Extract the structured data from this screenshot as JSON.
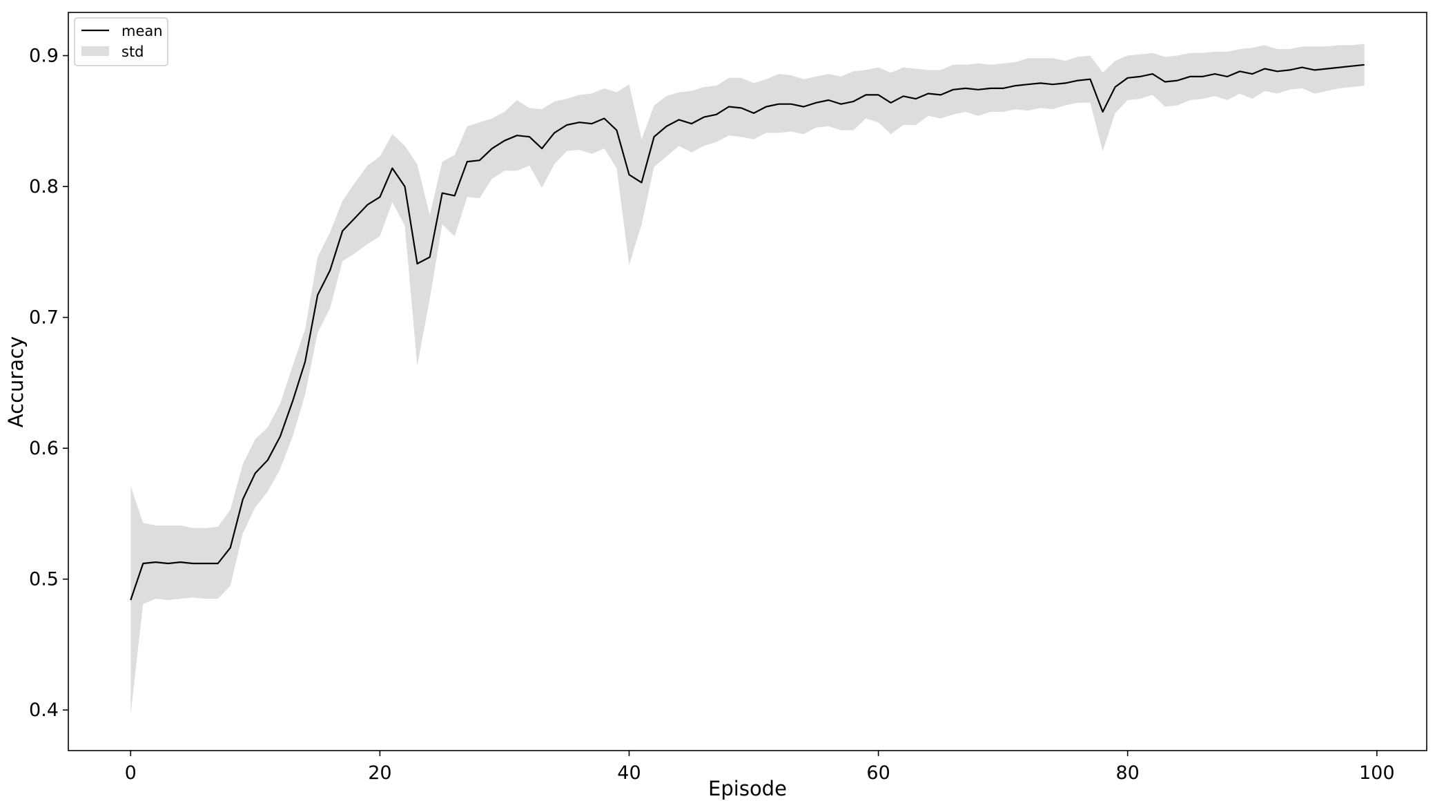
{
  "chart_data": {
    "type": "line",
    "xlabel": "Episode",
    "ylabel": "Accuracy",
    "xlim": [
      -5,
      104
    ],
    "ylim": [
      0.369,
      0.933
    ],
    "xticks": [
      0,
      20,
      40,
      60,
      80,
      100
    ],
    "yticks": [
      0.4,
      0.5,
      0.6,
      0.7,
      0.8,
      0.9
    ],
    "grid": false,
    "legend": {
      "position": "top-left",
      "entries": [
        {
          "label": "mean",
          "kind": "line",
          "color": "#000000"
        },
        {
          "label": "std",
          "kind": "patch",
          "color": "#dddddd"
        }
      ]
    },
    "series": [
      {
        "name": "mean",
        "color": "#000000",
        "x": [
          0,
          1,
          2,
          3,
          4,
          5,
          6,
          7,
          8,
          9,
          10,
          11,
          12,
          13,
          14,
          15,
          16,
          17,
          18,
          19,
          20,
          21,
          22,
          23,
          24,
          25,
          26,
          27,
          28,
          29,
          30,
          31,
          32,
          33,
          34,
          35,
          36,
          37,
          38,
          39,
          40,
          41,
          42,
          43,
          44,
          45,
          46,
          47,
          48,
          49,
          50,
          51,
          52,
          53,
          54,
          55,
          56,
          57,
          58,
          59,
          60,
          61,
          62,
          63,
          64,
          65,
          66,
          67,
          68,
          69,
          70,
          71,
          72,
          73,
          74,
          75,
          76,
          77,
          78,
          79,
          80,
          81,
          82,
          83,
          84,
          85,
          86,
          87,
          88,
          89,
          90,
          91,
          92,
          93,
          94,
          95,
          96,
          97,
          98,
          99
        ],
        "y": [
          0.484,
          0.512,
          0.513,
          0.512,
          0.513,
          0.512,
          0.512,
          0.512,
          0.524,
          0.561,
          0.581,
          0.591,
          0.609,
          0.636,
          0.666,
          0.717,
          0.736,
          0.766,
          0.776,
          0.786,
          0.792,
          0.814,
          0.8,
          0.741,
          0.746,
          0.795,
          0.793,
          0.819,
          0.82,
          0.829,
          0.835,
          0.839,
          0.838,
          0.829,
          0.841,
          0.847,
          0.849,
          0.848,
          0.852,
          0.843,
          0.809,
          0.803,
          0.838,
          0.846,
          0.851,
          0.848,
          0.853,
          0.855,
          0.861,
          0.86,
          0.856,
          0.861,
          0.863,
          0.863,
          0.861,
          0.864,
          0.866,
          0.863,
          0.865,
          0.87,
          0.87,
          0.864,
          0.869,
          0.867,
          0.871,
          0.87,
          0.874,
          0.875,
          0.874,
          0.875,
          0.875,
          0.877,
          0.878,
          0.879,
          0.878,
          0.879,
          0.881,
          0.882,
          0.857,
          0.876,
          0.883,
          0.884,
          0.886,
          0.88,
          0.881,
          0.884,
          0.884,
          0.886,
          0.884,
          0.888,
          0.886,
          0.89,
          0.888,
          0.889,
          0.891,
          0.889,
          0.89,
          0.891,
          0.892,
          0.893
        ]
      },
      {
        "name": "std",
        "color": "#dddddd",
        "x": [
          0,
          1,
          2,
          3,
          4,
          5,
          6,
          7,
          8,
          9,
          10,
          11,
          12,
          13,
          14,
          15,
          16,
          17,
          18,
          19,
          20,
          21,
          22,
          23,
          24,
          25,
          26,
          27,
          28,
          29,
          30,
          31,
          32,
          33,
          34,
          35,
          36,
          37,
          38,
          39,
          40,
          41,
          42,
          43,
          44,
          45,
          46,
          47,
          48,
          49,
          50,
          51,
          52,
          53,
          54,
          55,
          56,
          57,
          58,
          59,
          60,
          61,
          62,
          63,
          64,
          65,
          66,
          67,
          68,
          69,
          70,
          71,
          72,
          73,
          74,
          75,
          76,
          77,
          78,
          79,
          80,
          81,
          82,
          83,
          84,
          85,
          86,
          87,
          88,
          89,
          90,
          91,
          92,
          93,
          94,
          95,
          96,
          97,
          98,
          99
        ],
        "upper": [
          0.571,
          0.543,
          0.541,
          0.541,
          0.541,
          0.539,
          0.539,
          0.54,
          0.553,
          0.588,
          0.607,
          0.616,
          0.634,
          0.663,
          0.691,
          0.746,
          0.765,
          0.789,
          0.803,
          0.816,
          0.823,
          0.84,
          0.831,
          0.817,
          0.778,
          0.819,
          0.824,
          0.846,
          0.849,
          0.852,
          0.857,
          0.866,
          0.86,
          0.859,
          0.865,
          0.867,
          0.87,
          0.871,
          0.875,
          0.872,
          0.878,
          0.836,
          0.862,
          0.869,
          0.872,
          0.873,
          0.876,
          0.877,
          0.883,
          0.883,
          0.879,
          0.882,
          0.886,
          0.885,
          0.882,
          0.884,
          0.886,
          0.884,
          0.888,
          0.889,
          0.891,
          0.887,
          0.891,
          0.89,
          0.889,
          0.889,
          0.893,
          0.893,
          0.894,
          0.893,
          0.894,
          0.895,
          0.898,
          0.898,
          0.898,
          0.896,
          0.899,
          0.9,
          0.887,
          0.896,
          0.9,
          0.901,
          0.902,
          0.899,
          0.9,
          0.902,
          0.902,
          0.903,
          0.903,
          0.905,
          0.906,
          0.908,
          0.905,
          0.905,
          0.907,
          0.907,
          0.907,
          0.908,
          0.908,
          0.909
        ],
        "lower": [
          0.397,
          0.481,
          0.485,
          0.484,
          0.485,
          0.486,
          0.485,
          0.485,
          0.495,
          0.535,
          0.555,
          0.567,
          0.584,
          0.609,
          0.641,
          0.688,
          0.707,
          0.743,
          0.749,
          0.756,
          0.762,
          0.788,
          0.77,
          0.663,
          0.714,
          0.771,
          0.762,
          0.792,
          0.791,
          0.806,
          0.812,
          0.812,
          0.816,
          0.799,
          0.817,
          0.827,
          0.828,
          0.825,
          0.829,
          0.814,
          0.74,
          0.771,
          0.815,
          0.823,
          0.831,
          0.826,
          0.831,
          0.834,
          0.839,
          0.838,
          0.836,
          0.841,
          0.841,
          0.842,
          0.84,
          0.845,
          0.846,
          0.843,
          0.843,
          0.852,
          0.849,
          0.84,
          0.847,
          0.847,
          0.854,
          0.852,
          0.855,
          0.857,
          0.854,
          0.857,
          0.857,
          0.859,
          0.858,
          0.86,
          0.859,
          0.862,
          0.864,
          0.864,
          0.827,
          0.856,
          0.866,
          0.867,
          0.87,
          0.861,
          0.862,
          0.866,
          0.867,
          0.869,
          0.866,
          0.871,
          0.867,
          0.873,
          0.871,
          0.874,
          0.875,
          0.871,
          0.873,
          0.875,
          0.876,
          0.877
        ]
      }
    ]
  }
}
